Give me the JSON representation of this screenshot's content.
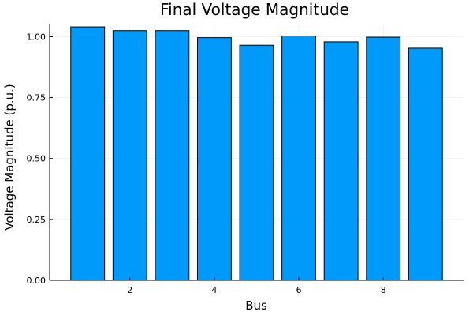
{
  "chart_data": {
    "type": "bar",
    "title": "Final Voltage Magnitude",
    "xlabel": "Bus",
    "ylabel": "Voltage Magnitude (p.u.)",
    "x": [
      1,
      2,
      3,
      4,
      5,
      6,
      7,
      8,
      9
    ],
    "values": [
      1.04,
      1.025,
      1.025,
      0.996,
      0.965,
      1.003,
      0.979,
      0.998,
      0.953
    ],
    "ylim": [
      0,
      1.05
    ],
    "xlim": [
      0.1,
      9.9
    ],
    "xticks": [
      2,
      4,
      6,
      8
    ],
    "xtick_labels": [
      "2",
      "4",
      "6",
      "8"
    ],
    "yticks": [
      0,
      0.25,
      0.5,
      0.75,
      1.0
    ],
    "ytick_labels": [
      "0.00",
      "0.25",
      "0.50",
      "0.75",
      "1.00"
    ],
    "grid": true,
    "legend": "none",
    "bar_color": "#009AFA",
    "bar_edge_color": "#000000"
  }
}
